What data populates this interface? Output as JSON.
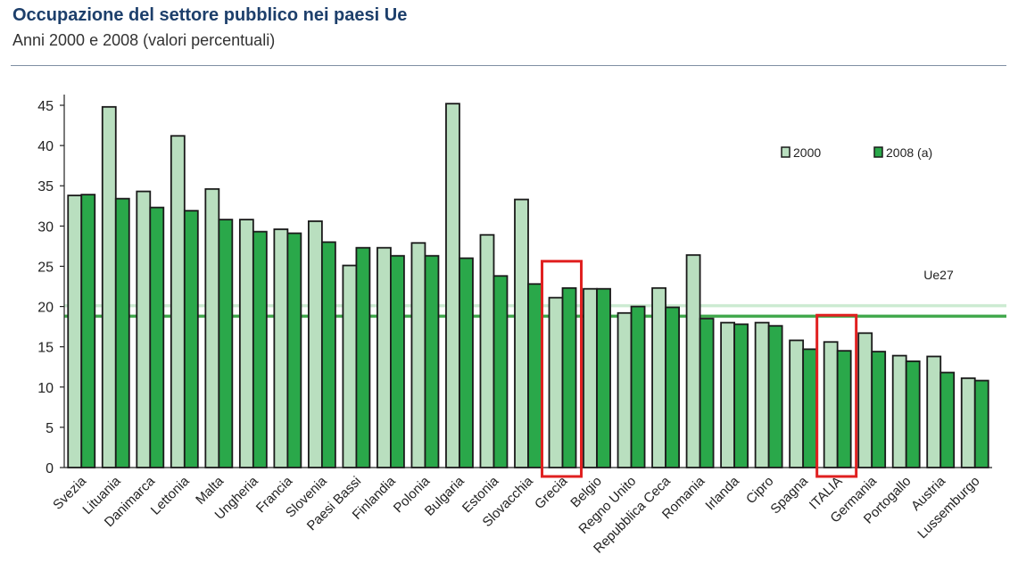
{
  "header": {
    "title": "Occupazione del settore pubblico nei paesi Ue",
    "subtitle": "Anni 2000 e 2008 (valori percentuali)"
  },
  "colors": {
    "series_2000": "#b9dfbf",
    "series_2008": "#2aa84a",
    "bar_stroke": "#1a1a1a",
    "ue27_2000_line": "#cdebd2",
    "ue27_2008_line": "#43a94e",
    "highlight_box": "#e02020"
  },
  "chart_data": {
    "type": "bar",
    "title": "Occupazione del settore pubblico nei paesi Ue",
    "subtitle": "Anni 2000 e 2008 (valori percentuali)",
    "xlabel": "",
    "ylabel": "",
    "ylim": [
      0,
      45
    ],
    "yticks": [
      0,
      5,
      10,
      15,
      20,
      25,
      30,
      35,
      40,
      45
    ],
    "grid": false,
    "legend_position": "top-right",
    "categories": [
      "Svezia",
      "Lituania",
      "Danimarca",
      "Lettonia",
      "Malta",
      "Ungheria",
      "Francia",
      "Slovenia",
      "Paesi Bassi",
      "Finlandia",
      "Polonia",
      "Bulgaria",
      "Estonia",
      "Slovacchia",
      "Grecia",
      "Belgio",
      "Regno Unito",
      "Repubblica Ceca",
      "Romania",
      "Irlanda",
      "Cipro",
      "Spagna",
      "ITALIA",
      "Germania",
      "Portogallo",
      "Austria",
      "Lussemburgo"
    ],
    "series": [
      {
        "name": "2000",
        "values": [
          33.8,
          44.8,
          34.3,
          41.2,
          34.6,
          30.8,
          29.6,
          30.6,
          25.1,
          27.3,
          27.9,
          45.2,
          28.9,
          33.3,
          21.1,
          22.2,
          19.2,
          22.3,
          26.4,
          18.0,
          18.0,
          15.8,
          15.6,
          16.7,
          13.9,
          13.8,
          11.1
        ]
      },
      {
        "name": "2008 (a)",
        "values": [
          33.9,
          33.4,
          32.3,
          31.9,
          30.8,
          29.3,
          29.1,
          28.0,
          27.3,
          26.3,
          26.3,
          26.0,
          23.8,
          22.8,
          22.3,
          22.2,
          20.0,
          19.9,
          18.5,
          17.8,
          17.6,
          14.7,
          14.5,
          14.4,
          13.2,
          11.8,
          10.8
        ]
      }
    ],
    "reference_lines": [
      {
        "name": "Ue27 2000",
        "value": 20.1
      },
      {
        "name": "Ue27 2008",
        "value": 18.8
      }
    ],
    "annotations": [
      {
        "text": "Ue27",
        "near": "reference lines, right"
      }
    ],
    "highlighted_categories": [
      "Grecia",
      "ITALIA"
    ]
  }
}
